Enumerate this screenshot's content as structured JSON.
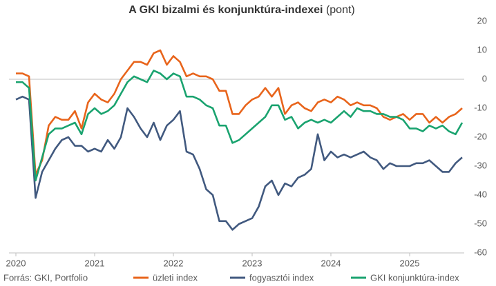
{
  "chart_data": {
    "type": "line",
    "title": "A GKI bizalmi és konjunktúra-indexei",
    "title_unit": "(pont)",
    "source": "Forrás: GKI, Portfolio",
    "categories": [
      "2020",
      null,
      null,
      null,
      null,
      null,
      null,
      null,
      null,
      null,
      null,
      null,
      "2021",
      null,
      null,
      null,
      null,
      null,
      null,
      null,
      null,
      null,
      null,
      null,
      "2022",
      null,
      null,
      null,
      null,
      null,
      null,
      null,
      null,
      null,
      null,
      null,
      "2023",
      null,
      null,
      null,
      null,
      null,
      null,
      null,
      null,
      null,
      null,
      null,
      "2024",
      null,
      null,
      null,
      null,
      null,
      null,
      null,
      null,
      null,
      null,
      null,
      "2025",
      null,
      null,
      null,
      null,
      null,
      null,
      null,
      null
    ],
    "series": [
      {
        "name": "üzleti index",
        "color": "#e8641b",
        "values": [
          2,
          2,
          1,
          -33,
          -28,
          -16,
          -13,
          -14,
          -14,
          -11,
          -17,
          -8,
          -5,
          -7,
          -8,
          -5,
          0,
          3,
          6,
          6,
          5,
          9,
          10,
          5,
          8,
          6,
          1,
          2,
          1,
          1,
          0,
          -4,
          -4,
          -12,
          -12,
          -9,
          -7,
          -6,
          -3,
          -6,
          -3,
          -12,
          -9,
          -8,
          -10,
          -11,
          -8,
          -7,
          -8,
          -6,
          -7,
          -9,
          -8,
          -9,
          -9,
          -10,
          -13,
          -14,
          -13,
          -12,
          -14,
          -12,
          -12,
          -15,
          -13,
          -15,
          -13,
          -12,
          -10
        ]
      },
      {
        "name": "fogyasztói index",
        "color": "#41597f",
        "values": [
          -7,
          -6,
          -7,
          -41,
          -32,
          -28,
          -24,
          -21,
          -20,
          -23,
          -23,
          -25,
          -24,
          -25,
          -21,
          -24,
          -20,
          -10,
          -13,
          -17,
          -20,
          -15,
          -21,
          -16,
          -14,
          -11,
          -25,
          -26,
          -31,
          -38,
          -40,
          -49,
          -49,
          -52,
          -50,
          -49,
          -48,
          -44,
          -37,
          -35,
          -40,
          -36,
          -37,
          -34,
          -33,
          -31,
          -19,
          -28,
          -25,
          -27,
          -26,
          -27,
          -26,
          -25,
          -27,
          -28,
          -31,
          -29,
          -30,
          -30,
          -30,
          -29,
          -29,
          -28,
          -30,
          -32,
          -32,
          -29,
          -27
        ]
      },
      {
        "name": "GKI konjunktúra-index",
        "color": "#1aa36f",
        "values": [
          -1,
          -1,
          -3,
          -35,
          -27,
          -19,
          -17,
          -17,
          -16,
          -15,
          -19,
          -12,
          -10,
          -12,
          -11,
          -9,
          -5,
          -1,
          1,
          0,
          -1,
          3,
          2,
          0,
          2,
          1,
          -6,
          -6,
          -7,
          -9,
          -10,
          -16,
          -16,
          -22,
          -21,
          -19,
          -17,
          -15,
          -13,
          -9,
          -9,
          -14,
          -13,
          -17,
          -15,
          -14,
          -15,
          -14,
          -15,
          -13,
          -11,
          -13,
          -10,
          -11,
          -11,
          -12,
          -12,
          -13,
          -13,
          -14,
          -17,
          -17,
          -18,
          -16,
          -17,
          -16,
          -18,
          -19,
          -15
        ]
      }
    ],
    "ylim": [
      -60,
      20
    ],
    "yticks": [
      20,
      10,
      0,
      -10,
      -20,
      -30,
      -40,
      -50,
      -60
    ],
    "grid": false
  }
}
